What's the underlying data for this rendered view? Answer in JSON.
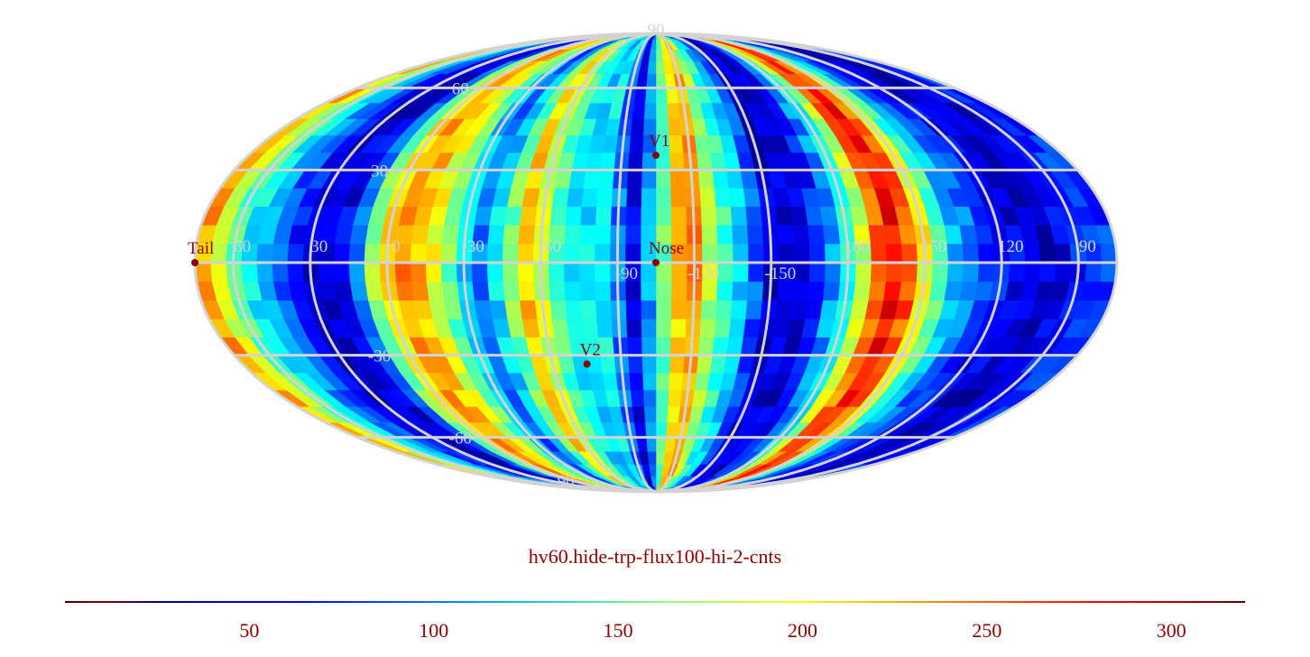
{
  "chart_data": {
    "type": "heatmap",
    "projection": "mollweide",
    "title": "hv60.hide-trp-flux100-hi-2-cnts",
    "colormap": "jet",
    "colorbar": {
      "range": [
        0,
        320
      ],
      "ticks": [
        50,
        100,
        150,
        200,
        250,
        300
      ],
      "placement": "bottom"
    },
    "grid": true,
    "grid_color": "#d3d3d3",
    "latitude_labels": [
      "90",
      "60",
      "30",
      "-30",
      "-60",
      "-90"
    ],
    "longitude_labels": [
      "60",
      "30",
      "0",
      "-30",
      "-60",
      "-90",
      "-120",
      "-150",
      "180",
      "150",
      "120",
      "90"
    ],
    "markers": [
      {
        "label": "V1",
        "lon": -105,
        "lat": 35
      },
      {
        "label": "Nose",
        "lon": -105,
        "lat": 0
      },
      {
        "label": "V2",
        "lon": -75,
        "lat": -33
      },
      {
        "label": "Tail",
        "lon": 75,
        "lat": 0
      }
    ],
    "bands": [
      {
        "lon": 72,
        "value": 230
      },
      {
        "lon": 60,
        "value": 150
      },
      {
        "lon": 45,
        "value": 80
      },
      {
        "lon": 30,
        "value": 30
      },
      {
        "lon": 15,
        "value": 40
      },
      {
        "lon": 5,
        "value": 180
      },
      {
        "lon": -5,
        "value": 240
      },
      {
        "lon": -15,
        "value": 215
      },
      {
        "lon": -25,
        "value": 150
      },
      {
        "lon": -35,
        "value": 70
      },
      {
        "lon": -45,
        "value": 130
      },
      {
        "lon": -55,
        "value": 230
      },
      {
        "lon": -65,
        "value": 150
      },
      {
        "lon": -75,
        "value": 110
      },
      {
        "lon": -85,
        "value": 130
      },
      {
        "lon": -95,
        "value": 30
      },
      {
        "lon": -103,
        "value": 100
      },
      {
        "lon": -110,
        "value": 180
      },
      {
        "lon": -118,
        "value": 255
      },
      {
        "lon": -128,
        "value": 160
      },
      {
        "lon": -138,
        "value": 110
      },
      {
        "lon": -150,
        "value": 30
      },
      {
        "lon": -165,
        "value": 35
      },
      {
        "lon": 178,
        "value": 140
      },
      {
        "lon": 168,
        "value": 250
      },
      {
        "lon": 160,
        "value": 290
      },
      {
        "lon": 150,
        "value": 200
      },
      {
        "lon": 140,
        "value": 110
      },
      {
        "lon": 130,
        "value": 70
      },
      {
        "lon": 115,
        "value": 35
      },
      {
        "lon": 100,
        "value": 25
      },
      {
        "lon": 87,
        "value": 60
      }
    ]
  }
}
